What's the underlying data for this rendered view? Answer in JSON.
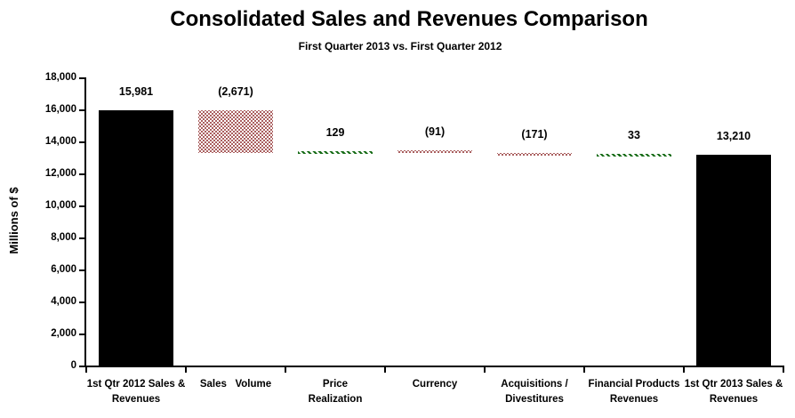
{
  "chart_data": {
    "type": "bar",
    "variant": "waterfall",
    "title": "Consolidated Sales and Revenues Comparison",
    "subtitle": "First Quarter 2013 vs. First Quarter 2012",
    "xlabel": "",
    "ylabel": "Millions of $",
    "ylim": [
      0,
      18000
    ],
    "ytick_step": 2000,
    "ytick_labels": [
      "0",
      "2,000",
      "4,000",
      "6,000",
      "8,000",
      "10,000",
      "12,000",
      "14,000",
      "16,000",
      "18,000"
    ],
    "grid": false,
    "legend": false,
    "categories": [
      "1st Qtr 2012 Sales &\nRevenues",
      "Sales   Volume",
      "Price\nRealization",
      "Currency",
      "Acquisitions /\nDivestitures",
      "Financial Products\nRevenues",
      "1st Qtr 2013 Sales &\nRevenues"
    ],
    "bars": [
      {
        "label": "15,981",
        "value": 15981,
        "start": 0,
        "end": 15981,
        "style": "solid-black"
      },
      {
        "label": "(2,671)",
        "value": -2671,
        "start": 13310,
        "end": 15981,
        "style": "dotted-red"
      },
      {
        "label": "129",
        "value": 129,
        "start": 13310,
        "end": 13439,
        "style": "dashed-green"
      },
      {
        "label": "(91)",
        "value": -91,
        "start": 13348,
        "end": 13439,
        "style": "dotted-red"
      },
      {
        "label": "(171)",
        "value": -171,
        "start": 13177,
        "end": 13348,
        "style": "dotted-red"
      },
      {
        "label": "33",
        "value": 33,
        "start": 13177,
        "end": 13210,
        "style": "dashed-green"
      },
      {
        "label": "13,210",
        "value": 13210,
        "start": 0,
        "end": 13210,
        "style": "solid-black"
      }
    ],
    "colors": {
      "solid_bar": "#000000",
      "negative_pattern": "#8e2a2a",
      "positive_pattern": "#166b16",
      "axis": "#000000",
      "background": "#ffffff"
    }
  }
}
